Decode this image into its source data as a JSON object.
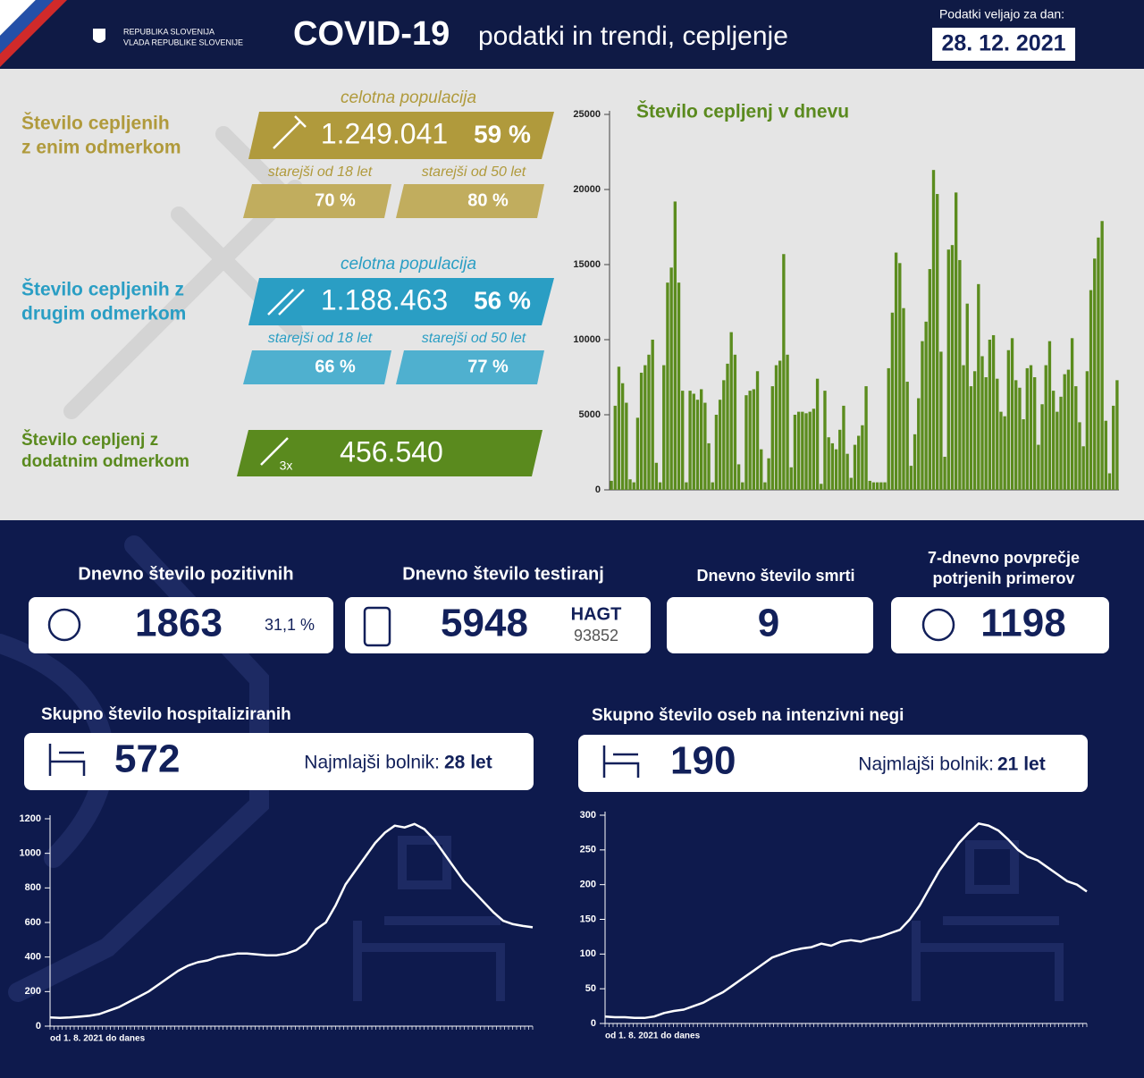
{
  "header": {
    "org_line1": "REPUBLIKA SLOVENIJA",
    "org_line2": "VLADA REPUBLIKE SLOVENIJE",
    "title": "COVID-19",
    "subtitle": "podatki in trendi, cepljenje",
    "date_label": "Podatki veljajo za dan:",
    "date": "28. 12. 2021"
  },
  "vaccination": {
    "first_dose": {
      "label_line1": "Število cepljenih",
      "label_line2": "z enim odmerkom",
      "population_label": "celotna populacija",
      "total": "1.249.041",
      "total_pct": "59 %",
      "adult_label": "starejši od 18 let",
      "adult_pct": "70 %",
      "senior_label": "starejši od 50 let",
      "senior_pct": "80 %"
    },
    "second_dose": {
      "label_line1": "Število cepljenih z",
      "label_line2": "drugim odmerkom",
      "population_label": "celotna populacija",
      "total": "1.188.463",
      "total_pct": "56 %",
      "adult_label": "starejši od 18 let",
      "adult_pct": "66 %",
      "senior_label": "starejši od 50 let",
      "senior_pct": "77 %"
    },
    "booster": {
      "label_line1": "Število cepljenj z",
      "label_line2": "dodatnim odmerkom",
      "multiplier": "3x",
      "total": "456.540"
    }
  },
  "stats": [
    {
      "title": "Dnevno število pozitivnih",
      "value": "1863",
      "note": "31,1 %"
    },
    {
      "title": "Dnevno število testiranj",
      "value": "5948",
      "note_label": "HAGT",
      "note": "93852"
    },
    {
      "title": "Dnevno število smrti",
      "value": "9"
    },
    {
      "title_line1": "7-dnevno povprečje",
      "title_line2": "potrjenih primerov",
      "value": "1198"
    }
  ],
  "hospital": {
    "title": "Skupno število hospitaliziranih",
    "value": "572",
    "youngest_label": "Najmlajši bolnik:",
    "youngest": "28 let"
  },
  "icu": {
    "title": "Skupno število oseb na intenzivni negi",
    "value": "190",
    "youngest_label": "Najmlajši bolnik:",
    "youngest": "21 let"
  },
  "chart_data": [
    {
      "type": "bar",
      "title": "Število cepljenj v dnevu",
      "color": "#5b8c1e",
      "ylim": [
        0,
        25000
      ],
      "yticks": [
        0,
        5000,
        10000,
        15000,
        20000,
        25000
      ],
      "values": [
        600,
        5600,
        8200,
        7100,
        5800,
        700,
        500,
        4800,
        7800,
        8300,
        9000,
        10000,
        1800,
        500,
        8300,
        13800,
        14800,
        19200,
        13800,
        6600,
        500,
        6600,
        6400,
        6000,
        6700,
        5800,
        3100,
        500,
        5000,
        6000,
        7300,
        8400,
        10500,
        9000,
        1700,
        500,
        6300,
        6600,
        6700,
        7900,
        2700,
        500,
        2100,
        6900,
        8300,
        8600,
        15700,
        9000,
        1500,
        5000,
        5200,
        5200,
        5100,
        5200,
        5400,
        7400,
        400,
        6600,
        3500,
        3100,
        2700,
        4000,
        5600,
        2400,
        800,
        3000,
        3600,
        4300,
        6900,
        600,
        500,
        500,
        500,
        500,
        8100,
        11800,
        15800,
        15100,
        12100,
        7200,
        1600,
        3700,
        6100,
        9900,
        11200,
        14700,
        21300,
        19700,
        9200,
        2200,
        16000,
        16300,
        19800,
        15300,
        8300,
        12400,
        6900,
        7900,
        13700,
        8900,
        7500,
        10000,
        10300,
        7400,
        5200,
        4900,
        9300,
        10100,
        7300,
        6800,
        4700,
        8100,
        8300,
        7500,
        3000,
        5700,
        8300,
        9900,
        6600,
        5200,
        6200,
        7700,
        8000,
        10100,
        6900,
        4500,
        2900,
        7900,
        13300,
        15400,
        16800,
        17900,
        4600,
        1100,
        5600,
        7300
      ]
    },
    {
      "type": "line",
      "x_label": "od 1. 8. 2021 do danes",
      "color": "#ffffff",
      "ylim": [
        0,
        1200
      ],
      "yticks": [
        0,
        200,
        400,
        600,
        800,
        1000,
        1200
      ],
      "values": [
        50,
        48,
        50,
        55,
        60,
        70,
        90,
        110,
        140,
        170,
        200,
        240,
        280,
        320,
        350,
        370,
        380,
        400,
        410,
        420,
        420,
        415,
        410,
        410,
        420,
        440,
        480,
        560,
        600,
        700,
        820,
        900,
        980,
        1060,
        1120,
        1160,
        1150,
        1170,
        1140,
        1080,
        1000,
        920,
        840,
        780,
        720,
        660,
        610,
        590,
        580,
        572
      ]
    },
    {
      "type": "line",
      "x_label": "od 1. 8. 2021 do danes",
      "color": "#ffffff",
      "ylim": [
        0,
        300
      ],
      "yticks": [
        0,
        50,
        100,
        150,
        200,
        250,
        300
      ],
      "values": [
        10,
        9,
        9,
        8,
        8,
        10,
        15,
        18,
        20,
        25,
        30,
        38,
        45,
        55,
        65,
        75,
        85,
        95,
        100,
        105,
        108,
        110,
        115,
        112,
        118,
        120,
        118,
        122,
        125,
        130,
        135,
        150,
        170,
        195,
        220,
        240,
        260,
        275,
        288,
        285,
        278,
        265,
        250,
        240,
        235,
        225,
        215,
        205,
        200,
        190
      ]
    }
  ]
}
